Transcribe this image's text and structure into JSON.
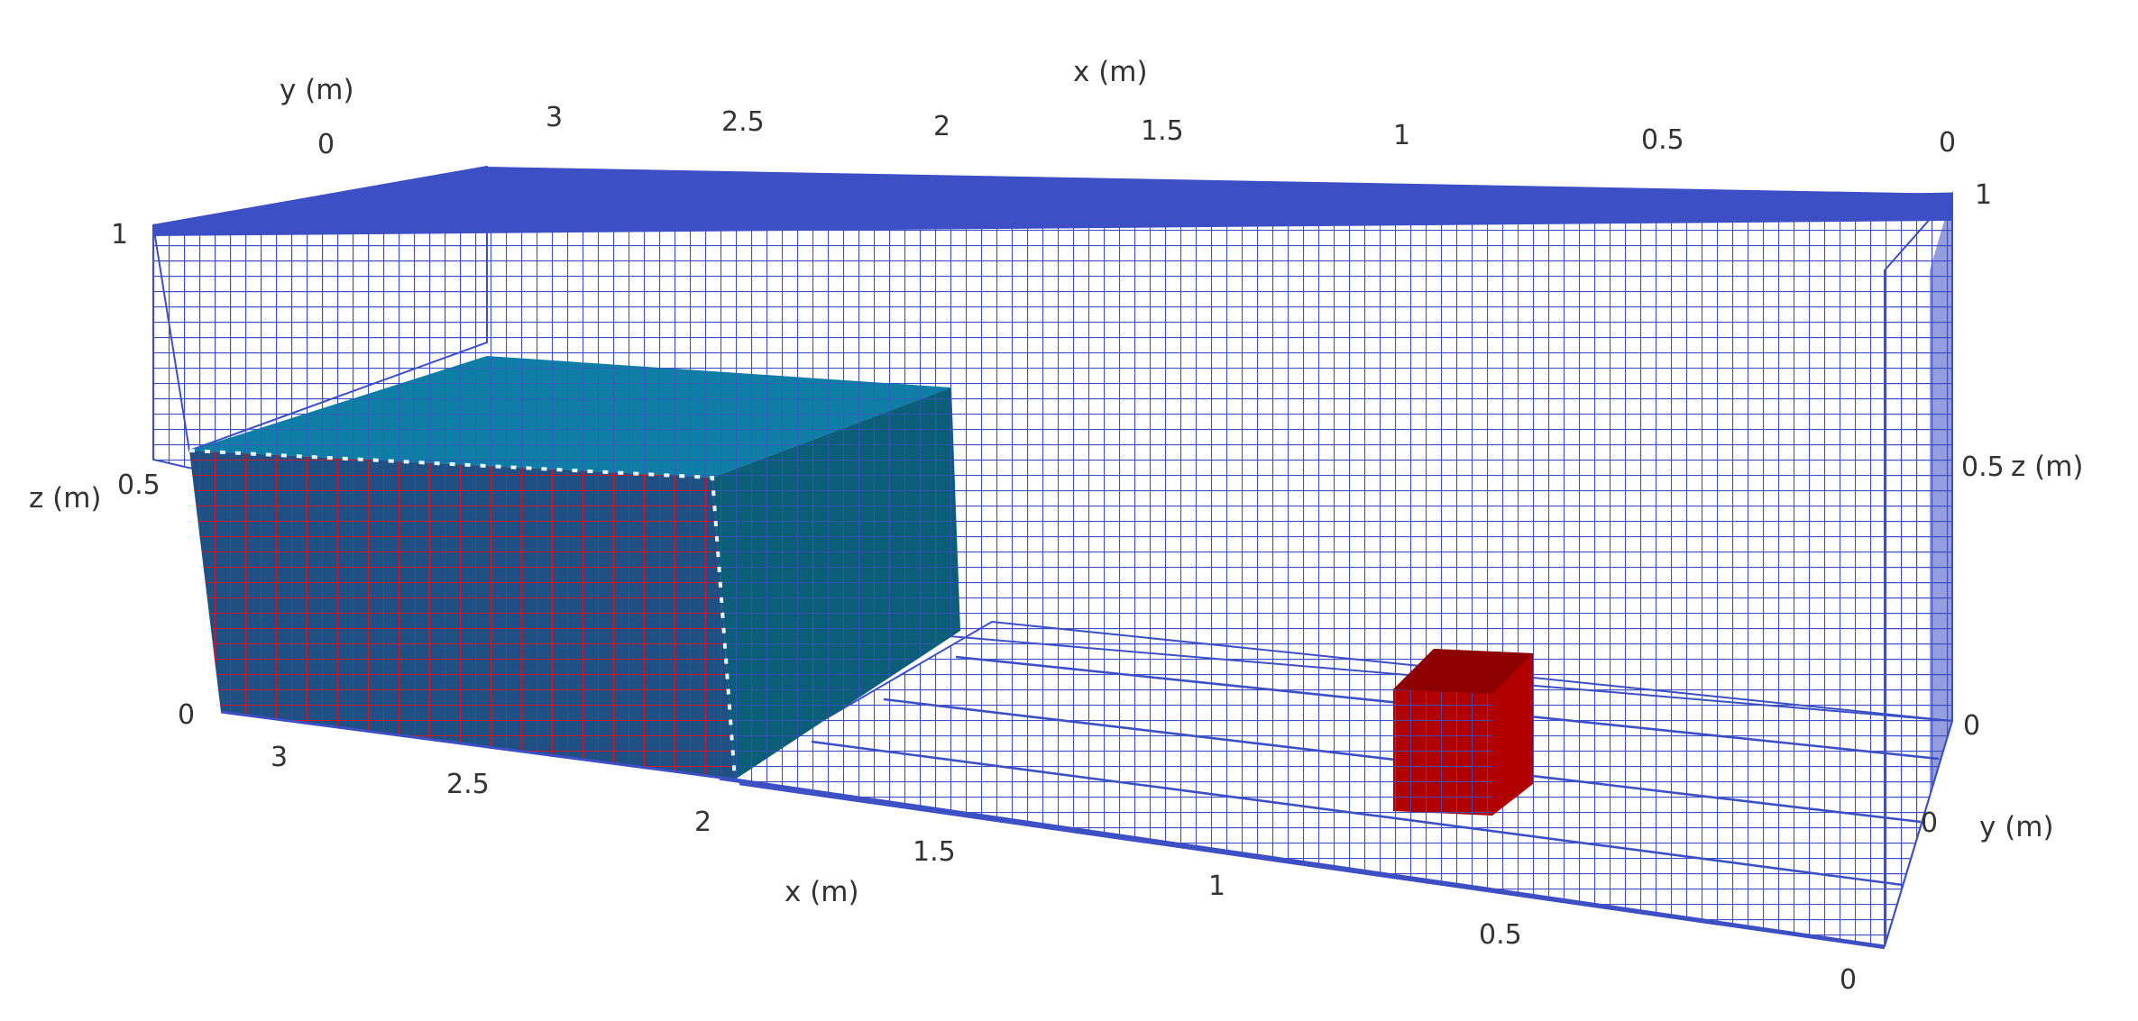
{
  "axes": {
    "x_title": "x (m)",
    "y_title": "y (m)",
    "z_title": "z (m)",
    "x_ticks_top": [
      "3",
      "2.5",
      "2",
      "1.5",
      "1",
      "0.5",
      "0"
    ],
    "y_tick_top": "0",
    "x_ticks_bottom": [
      "3",
      "2.5",
      "2",
      "1.5",
      "1",
      "0.5",
      "0"
    ],
    "y_tick_bottom": "0",
    "z_ticks_left": [
      "0",
      "0.5",
      "1"
    ],
    "z_ticks_right": [
      "0",
      "0.5",
      "1"
    ]
  },
  "colors": {
    "mesh": "#3d4fc4",
    "water_top": "#0f7ea6",
    "water_side": "#0b5e78",
    "water_front": "#1f4f83",
    "obstacle": "#b00000"
  }
}
